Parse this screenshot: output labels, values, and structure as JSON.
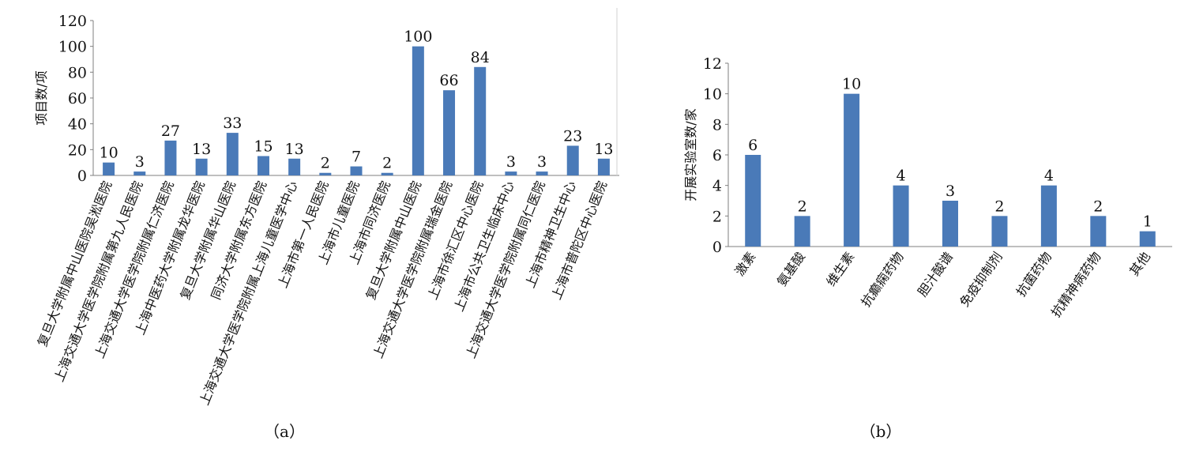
{
  "chart_data": [
    {
      "type": "bar",
      "panel_label": "（a）",
      "ylabel": "项目数/项",
      "ylim": [
        0,
        120
      ],
      "yticks": [
        0,
        20,
        40,
        60,
        80,
        100,
        120
      ],
      "bar_color": "#4a7ab8",
      "categories": [
        "复旦大学附属中山医院吴淞医院",
        "上海交通大学医学院附属第九人民医院",
        "上海交通大学医学院附属仁济医院",
        "上海中医药大学附属龙华医院",
        "复旦大学附属华山医院",
        "同济大学附属东方医院",
        "上海交通大学医学院附属上海儿童医学中心",
        "上海市第一人民医院",
        "上海市儿童医院",
        "上海市同济医院",
        "复旦大学附属中山医院",
        "上海交通大学医学院附属瑞金医院",
        "上海市徐汇区中心医院",
        "上海市公共卫生临床中心",
        "上海交通大学医学院附属同仁医院",
        "上海市精神卫生中心",
        "上海市普陀区中心医院"
      ],
      "values": [
        10,
        3,
        27,
        13,
        33,
        15,
        13,
        2,
        7,
        2,
        100,
        66,
        84,
        3,
        3,
        23,
        13
      ]
    },
    {
      "type": "bar",
      "panel_label": "（b）",
      "ylabel": "开展实验室数/家",
      "ylim": [
        0,
        12
      ],
      "yticks": [
        0,
        2,
        4,
        6,
        8,
        10,
        12
      ],
      "bar_color": "#4a7ab8",
      "categories": [
        "激素",
        "氨基酸",
        "维生素",
        "抗癫痫药物",
        "胆汁酸谱",
        "免疫抑制剂",
        "抗菌药物",
        "抗精神病药物",
        "其他"
      ],
      "values": [
        6,
        2,
        10,
        4,
        3,
        2,
        4,
        2,
        1
      ]
    }
  ]
}
